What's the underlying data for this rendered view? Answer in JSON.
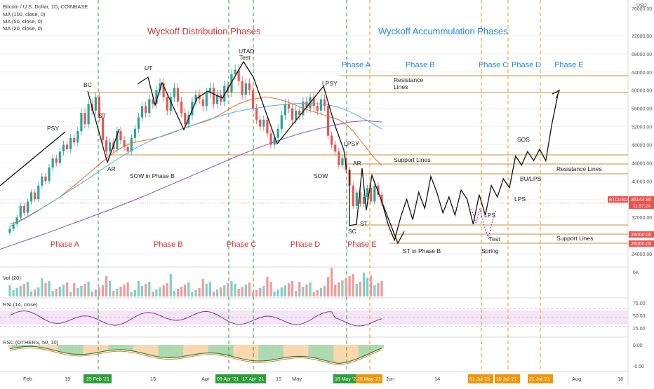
{
  "header": {
    "symbol_line": "Bitcoin / U.S. Dollar, 1D, COINBASE",
    "indicators": [
      "MA (100, close, 0)",
      "MA (50, close, 0)",
      "MA (20, close, 0)"
    ]
  },
  "titles": {
    "distribution": "Wyckoff Distribution Phases",
    "accumulation": "Wyckoff Accummulation Phases"
  },
  "colors": {
    "up": "#26a69a",
    "down": "#ef5350",
    "ma20": "#e86b1f",
    "ma50": "#4db6d8",
    "ma100": "#7e57c2",
    "distribution_text": "#d32f2f",
    "accumulation_text": "#1e88e5",
    "guide_green": "#2e9e3a",
    "guide_orange": "#f0960a",
    "resistance_line": "#c9923a",
    "rsi_line": "#7b1fa2",
    "rsi_band": "#f3e5f5",
    "rsc_fill_orange": "#fbd3a6",
    "rsc_fill_green": "#a5d6a7"
  },
  "chart_data": {
    "type": "line",
    "title": "Bitcoin / U.S. Dollar, 1D, COINBASE",
    "price_axis": {
      "ylim": [
        22000,
        78000
      ],
      "ticks": [
        24000,
        28000,
        32000,
        36000,
        40000,
        44000,
        48000,
        52000,
        56000,
        60000,
        64000,
        68000,
        72000
      ],
      "top_label": "76000.00",
      "tick_labels": [
        "24000.00",
        "28000.00",
        "32000.00",
        "36000.00",
        "40000.00",
        "44000.00",
        "48000.00",
        "52000.00",
        "56000.00",
        "60000.00",
        "64000.00",
        "68000.00",
        "72000.00"
      ],
      "unit_label": "USD"
    },
    "x_axis": {
      "tick_labels": [
        "Feb",
        "15",
        "15",
        "Apr",
        "15",
        "May",
        "Jun",
        "14",
        "Aug",
        "16"
      ],
      "highlighted_dates": [
        {
          "label": "25 Feb '21",
          "color": "green"
        },
        {
          "label": "09 Apr '21",
          "color": "green"
        },
        {
          "label": "17 Apr '21",
          "color": "green"
        },
        {
          "label": "18 May '21",
          "color": "green"
        },
        {
          "label": "25 May '21",
          "color": "orange"
        },
        {
          "label": "01 Jul '21",
          "color": "orange"
        },
        {
          "label": "10 Jul '21",
          "color": "orange"
        },
        {
          "label": "21 Jul '21",
          "color": "orange"
        }
      ]
    },
    "price_series": [
      {
        "name": "BTCUSD",
        "values": [
          29500,
          30500,
          32000,
          34500,
          33000,
          35500,
          37500,
          36000,
          39000,
          41000,
          40000,
          43000,
          45000,
          44000,
          46500,
          48000,
          47000,
          49500,
          48500,
          51000,
          55000,
          52500,
          57000,
          55500,
          58500,
          54000,
          49000,
          46500,
          48500,
          47000,
          51000,
          49000,
          47500,
          46500,
          49500,
          51500,
          54000,
          56500,
          55000,
          58000,
          57000,
          60000,
          61500,
          58500,
          55500,
          58500,
          60500,
          57500,
          55000,
          52500,
          54500,
          57500,
          59000,
          58000,
          56500,
          59500,
          60500,
          57000,
          59000,
          57500,
          61000,
          59500,
          63500,
          64500,
          62000,
          59000,
          61500,
          60000,
          56000,
          53500,
          52000,
          53500,
          50500,
          48000,
          49500,
          51500,
          54500,
          57000,
          56000,
          53500,
          55500,
          54500,
          57500,
          56000,
          58500,
          56500,
          55500,
          58000,
          56500,
          50000,
          48000,
          46500,
          43500,
          45000,
          42500,
          39000,
          34500,
          37500,
          35000,
          36500,
          38500,
          35500,
          39000,
          37000,
          35144
        ]
      },
      {
        "name": "MA (20, close, 0)",
        "values": [
          30500,
          31000,
          31800,
          32700,
          33600,
          34500,
          35500,
          36500,
          37800,
          39000,
          40300,
          41600,
          43000,
          44300,
          45600,
          46800,
          47700,
          48300,
          48700,
          49000,
          49300,
          49700,
          50200,
          50800,
          51400,
          52000,
          52500,
          53000,
          53500,
          54300,
          55200,
          56200,
          57000,
          57600,
          58000,
          58300,
          58500,
          58200,
          57800,
          57300,
          56700,
          56000,
          55500,
          55000,
          54500,
          54000,
          53500,
          52500,
          51000,
          49000,
          47000,
          45000,
          43500
        ]
      },
      {
        "name": "MA (50, close, 0)",
        "values": [
          30000,
          31000,
          32100,
          33300,
          34600,
          35800,
          37100,
          38400,
          39700,
          41000,
          42400,
          43700,
          45000,
          46200,
          47400,
          48400,
          49300,
          50100,
          50800,
          51500,
          52200,
          52900,
          53600,
          54200,
          54800,
          55300,
          55700,
          56000,
          56300,
          56600,
          56800,
          57000,
          57100,
          57100,
          57000,
          56800,
          56400,
          55700,
          54800,
          53700,
          52600,
          51500
        ]
      },
      {
        "name": "MA (100, close, 0)",
        "values": [
          25000,
          26200,
          27400,
          28600,
          29900,
          31200,
          32500,
          33800,
          35200,
          36600,
          38100,
          39600,
          41100,
          42600,
          44100,
          45600,
          47000,
          48300,
          49500,
          50600,
          51500,
          52300,
          53000,
          53300,
          53000
        ]
      }
    ],
    "projection_path": {
      "name": "Projected accumulation path",
      "values": [
        35000,
        30200,
        27000,
        32000,
        36000,
        31500,
        37500,
        34000,
        41000,
        37500,
        33000,
        36500,
        32500,
        38000,
        36000,
        30500,
        37000,
        32500,
        39000,
        36500,
        40500,
        38500,
        45500,
        43500,
        46500,
        44500,
        47000,
        44500,
        52500,
        59000
      ]
    },
    "volume_pane": {
      "label": "Vol (20)",
      "top_label": "6K"
    },
    "rsi_pane": {
      "label": "RSI (14, close)",
      "ticks": [
        75,
        50,
        25
      ],
      "tick_labels": [
        "75.00",
        "50.00",
        "25.00"
      ],
      "band": [
        30,
        70
      ]
    },
    "rsc_pane": {
      "label": "RSC (OTHERS, 50, 10)",
      "tick_labels": [
        "0.00",
        "-0.50"
      ]
    },
    "price_labels": [
      {
        "label": "BTCUSD",
        "value": 35144.9,
        "text": "35144.90",
        "sub": "11:57:24"
      },
      {
        "label": "",
        "value": 28000,
        "text": "28000.00"
      },
      {
        "label": "",
        "value": 26000,
        "text": "26000.00"
      }
    ],
    "annotations": {
      "events": [
        "PSY",
        "BC",
        "ST",
        "AR",
        "UT",
        "UTAD",
        "Test",
        "LPSY",
        "LPSY",
        "SOW",
        "SOW in Phase B",
        "AR",
        "SC",
        "ST",
        "ST in Phase B",
        "LPS",
        "LPS",
        "SOS",
        "BU/LPS",
        "Test",
        "Spring"
      ],
      "phases_distribution": [
        "Phase A",
        "Phase B",
        "Phase C",
        "Phase D",
        "Phase E"
      ],
      "phases_accumulation": [
        "Phase A",
        "Phase B",
        "Phase C",
        "Phase D",
        "Phase E"
      ],
      "level_labels": [
        "Resistance Lines",
        "Support Lines",
        "Resistance Lines",
        "Support Lines"
      ]
    }
  }
}
